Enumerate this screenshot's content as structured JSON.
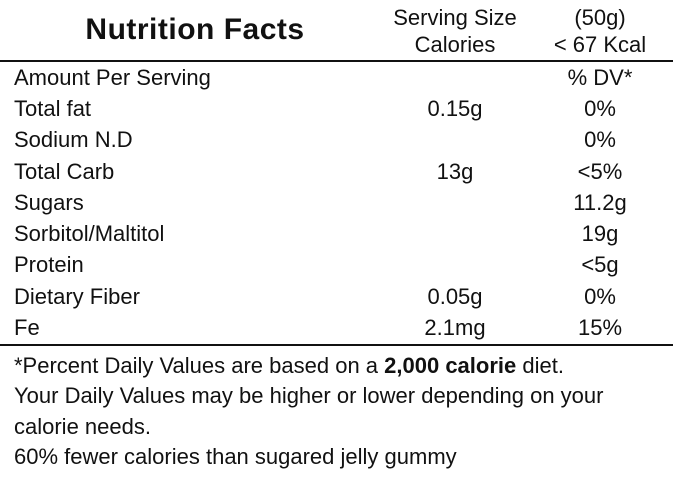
{
  "label": {
    "title": "Nutrition Facts",
    "header": {
      "rows": [
        {
          "name": "Serving Size",
          "value": "(50g)"
        },
        {
          "name": "Calories",
          "value": "< 67 Kcal"
        }
      ]
    },
    "column_header": {
      "label": "Amount Per Serving",
      "amount": "",
      "dv": "% DV*"
    },
    "rows": [
      {
        "label": "Total fat",
        "amount": "0.15g",
        "dv": "0%"
      },
      {
        "label": "Sodium N.D",
        "amount": "",
        "dv": "0%"
      },
      {
        "label": "Total Carb",
        "amount": "13g",
        "dv": "<5%"
      },
      {
        "label": "Sugars",
        "amount": "",
        "dv": "11.2g"
      },
      {
        "label": "Sorbitol/Maltitol",
        "amount": "",
        "dv": "19g"
      },
      {
        "label": "Protein",
        "amount": "",
        "dv": "<5g"
      },
      {
        "label": "Dietary Fiber",
        "amount": "0.05g",
        "dv": "0%"
      },
      {
        "label": "Fe",
        "amount": "2.1mg",
        "dv": "15%"
      }
    ],
    "footnote": {
      "line1_prefix": "*Percent Daily Values are based on a ",
      "line1_bold": "2,000 calorie",
      "line1_suffix": " diet.",
      "line2": "Your Daily Values may be higher or lower depending on your",
      "line3": "calorie needs.",
      "line4": "60% fewer calories than sugared jelly gummy"
    },
    "colors": {
      "text": "#111111",
      "background": "#ffffff",
      "rule": "#111111"
    }
  }
}
